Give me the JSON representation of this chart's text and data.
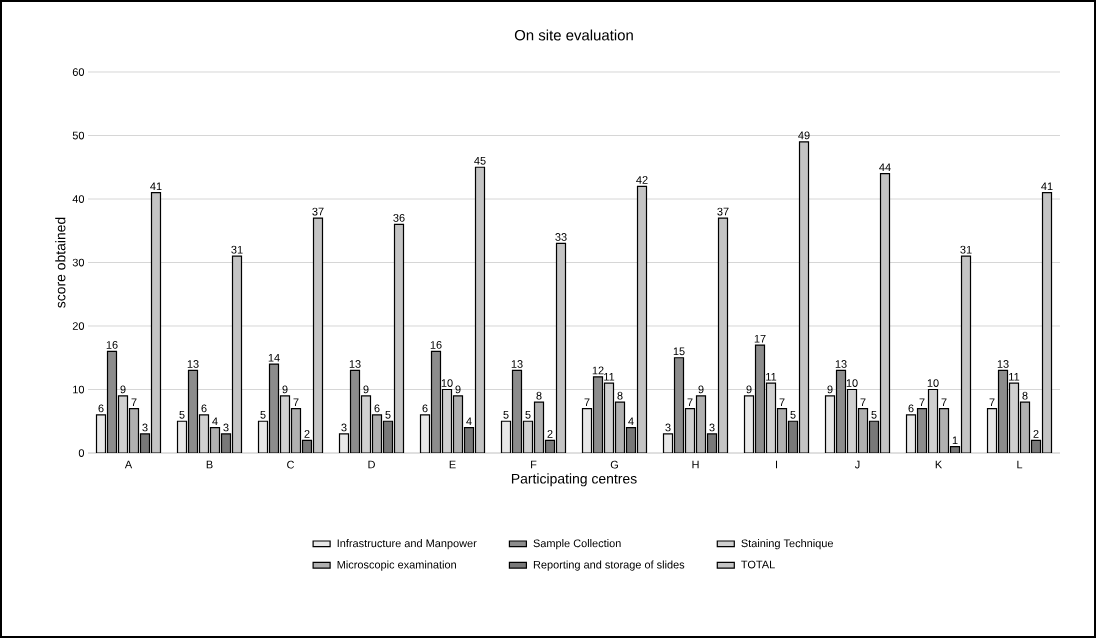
{
  "chart_data": {
    "type": "bar",
    "title": "On site evaluation",
    "xlabel": "Participating centres",
    "ylabel": "score obtained",
    "categories": [
      "A",
      "B",
      "C",
      "D",
      "E",
      "F",
      "G",
      "H",
      "I",
      "J",
      "K",
      "L"
    ],
    "series": [
      {
        "name": "Infrastructure and Manpower",
        "color": "#e8e8e8",
        "values": [
          6,
          5,
          5,
          3,
          6,
          5,
          7,
          3,
          9,
          9,
          6,
          7
        ]
      },
      {
        "name": "Sample Collection",
        "color": "#8c8c8c",
        "values": [
          16,
          13,
          14,
          13,
          16,
          13,
          12,
          15,
          17,
          13,
          7,
          13
        ]
      },
      {
        "name": "Staining Technique",
        "color": "#d0d0d0",
        "values": [
          9,
          6,
          9,
          9,
          10,
          5,
          11,
          7,
          11,
          10,
          10,
          11
        ]
      },
      {
        "name": "Microscopic examination",
        "color": "#b0b0b0",
        "values": [
          7,
          4,
          7,
          6,
          9,
          8,
          8,
          9,
          7,
          7,
          7,
          8
        ]
      },
      {
        "name": "Reporting and storage of slides",
        "color": "#787878",
        "values": [
          3,
          3,
          2,
          5,
          4,
          2,
          4,
          3,
          5,
          5,
          1,
          2
        ]
      },
      {
        "name": "TOTAL",
        "color": "#c4c4c4",
        "values": [
          41,
          31,
          37,
          36,
          45,
          33,
          42,
          37,
          49,
          44,
          31,
          41
        ]
      }
    ],
    "ylim": [
      0,
      60
    ],
    "yticks": [
      0,
      10,
      20,
      30,
      40,
      50,
      60
    ],
    "grid": "y",
    "legend": "bottom",
    "data_labels": true
  }
}
